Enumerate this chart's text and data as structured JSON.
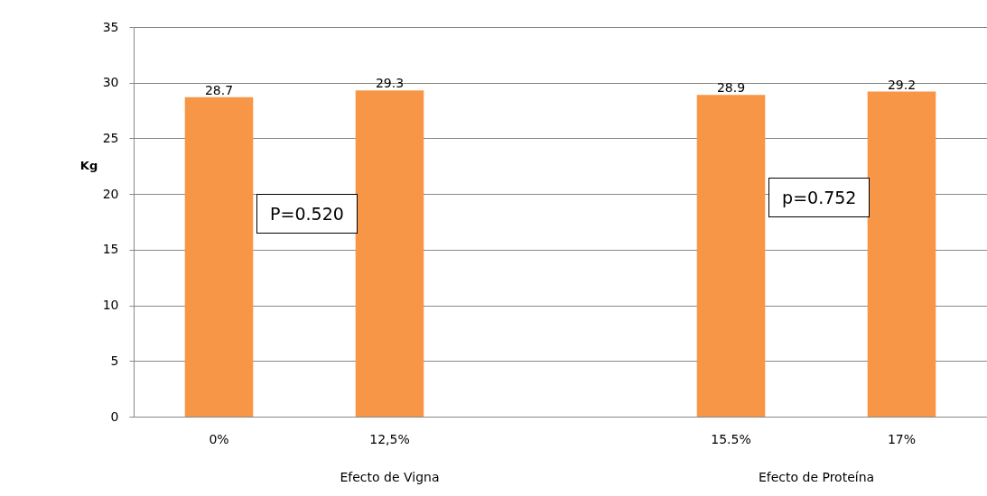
{
  "chart_data": {
    "type": "bar",
    "ylabel": "Kg",
    "categories": [
      "0%",
      "12,5%",
      null,
      "15.5%",
      "17%"
    ],
    "values": [
      28.7,
      29.3,
      null,
      28.9,
      29.2
    ],
    "color": "#f79646",
    "ylim": [
      0,
      35
    ],
    "yticks": [
      0,
      5,
      10,
      15,
      20,
      25,
      30,
      35
    ],
    "grid": "y",
    "data_labels": true,
    "annotations": [
      "P=0.520",
      "p=0.752",
      "Efecto de Vigna",
      "Efecto de Proteína"
    ]
  }
}
